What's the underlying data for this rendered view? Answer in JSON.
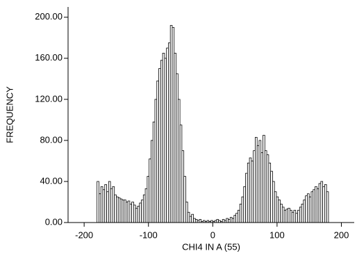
{
  "chart_data": {
    "type": "histogram",
    "xlabel": "CHI4 IN A (55)",
    "ylabel": "FREQUENCY",
    "bins": [
      -180,
      -177,
      -174,
      -171,
      -168,
      -165,
      -162,
      -159,
      -156,
      -153,
      -150,
      -147,
      -144,
      -141,
      -138,
      -135,
      -132,
      -129,
      -126,
      -123,
      -120,
      -117,
      -114,
      -111,
      -108,
      -105,
      -102,
      -99,
      -96,
      -93,
      -90,
      -87,
      -84,
      -81,
      -78,
      -75,
      -72,
      -69,
      -66,
      -63,
      -60,
      -57,
      -54,
      -51,
      -48,
      -45,
      -42,
      -39,
      -36,
      -33,
      -30,
      -27,
      -24,
      -21,
      -18,
      -15,
      -12,
      -9,
      -6,
      -3,
      0,
      3,
      6,
      9,
      12,
      15,
      18,
      21,
      24,
      27,
      30,
      33,
      36,
      39,
      42,
      45,
      48,
      51,
      54,
      57,
      60,
      63,
      66,
      69,
      72,
      75,
      78,
      81,
      84,
      87,
      90,
      93,
      96,
      99,
      102,
      105,
      108,
      111,
      114,
      117,
      120,
      123,
      126,
      129,
      132,
      135,
      138,
      141,
      144,
      147,
      150,
      153,
      156,
      159,
      162,
      165,
      168,
      171,
      174,
      177,
      180
    ],
    "values": [
      40,
      28,
      35,
      32,
      37,
      30,
      40,
      33,
      35,
      27,
      25,
      24,
      23,
      22,
      22,
      20,
      21,
      18,
      20,
      17,
      14,
      16,
      19,
      22,
      27,
      33,
      45,
      62,
      80,
      98,
      120,
      138,
      150,
      158,
      165,
      160,
      170,
      175,
      192,
      190,
      165,
      145,
      120,
      95,
      70,
      45,
      20,
      10,
      6,
      8,
      4,
      3,
      2,
      3,
      1,
      2,
      1,
      2,
      1,
      2,
      1,
      2,
      3,
      2,
      1,
      3,
      2,
      4,
      3,
      5,
      4,
      7,
      9,
      12,
      18,
      25,
      35,
      48,
      58,
      63,
      60,
      70,
      83,
      75,
      80,
      68,
      85,
      70,
      66,
      58,
      50,
      40,
      30,
      25,
      22,
      18,
      15,
      12,
      13,
      14,
      12,
      10,
      12,
      9,
      12,
      15,
      18,
      22,
      26,
      28,
      25,
      30,
      32,
      35,
      33,
      38,
      40,
      35,
      37,
      30
    ],
    "color": "#ffffff",
    "edgecolor": "#000000",
    "xlim": [
      -225,
      220
    ],
    "xticks": [
      -200,
      -100,
      0,
      100,
      200
    ],
    "ylim": [
      0,
      210
    ],
    "yticks": [
      {
        "value": 0,
        "label": "0.00"
      },
      {
        "value": 40,
        "label": "40.00"
      },
      {
        "value": 80,
        "label": "80.00"
      },
      {
        "value": 120,
        "label": "120.00"
      },
      {
        "value": 160,
        "label": "160.00"
      },
      {
        "value": 200,
        "label": "200.00"
      }
    ],
    "grid": false
  }
}
